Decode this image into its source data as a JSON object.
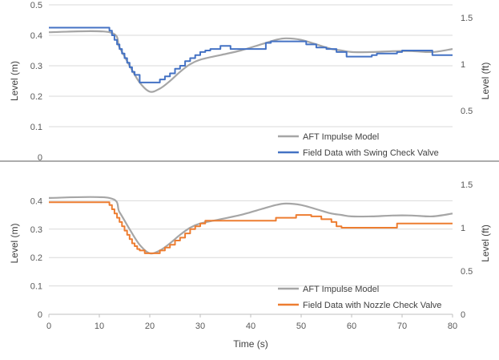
{
  "chart_data": {
    "type": "line",
    "x_axis": {
      "label": "Time (s)",
      "range": [
        0,
        80
      ],
      "ticks": [
        "0",
        "10",
        "20",
        "30",
        "40",
        "50",
        "60",
        "70",
        "80"
      ]
    },
    "charts": [
      {
        "type": "line",
        "ylabel_left": "Level (m)",
        "ylabel_right": "Level (ft)",
        "ylim": [
          0,
          0.5
        ],
        "yticks": [
          "0",
          "0.1",
          "0.2",
          "0.3",
          "0.4",
          "0.5"
        ],
        "ylim_right": [
          0,
          1.64
        ],
        "yticks_right": [
          "0.5",
          "1",
          "1.5"
        ],
        "legend_position": "bottom-right",
        "series": [
          {
            "name": "AFT Impulse Model",
            "color": "#a6a6a6",
            "style": "smooth",
            "x": [
              0,
              12,
              14,
              16,
              18,
              20,
              22,
              24,
              26,
              28,
              30,
              34,
              38,
              42,
              45,
              47,
              50,
              54,
              56,
              58,
              60,
              64,
              68,
              72,
              76,
              80
            ],
            "y": [
              0.41,
              0.41,
              0.36,
              0.3,
              0.245,
              0.215,
              0.225,
              0.25,
              0.28,
              0.305,
              0.32,
              0.335,
              0.35,
              0.37,
              0.385,
              0.39,
              0.385,
              0.365,
              0.355,
              0.35,
              0.345,
              0.345,
              0.348,
              0.348,
              0.345,
              0.355
            ]
          },
          {
            "name": "Field Data with Swing Check Valve",
            "color": "#4472c4",
            "style": "step",
            "x": [
              0,
              12,
              12.5,
              13,
              13.5,
              14,
              14.5,
              15,
              15.5,
              16,
              16.5,
              17,
              18,
              22,
              23,
              24,
              25,
              26,
              27,
              28,
              29,
              30,
              31,
              32,
              34,
              36,
              43,
              44,
              51,
              53,
              55,
              57,
              59,
              64,
              65,
              69,
              70,
              76,
              77,
              80
            ],
            "y": [
              0.425,
              0.415,
              0.4,
              0.385,
              0.37,
              0.355,
              0.34,
              0.325,
              0.31,
              0.295,
              0.28,
              0.27,
              0.245,
              0.255,
              0.265,
              0.275,
              0.29,
              0.3,
              0.315,
              0.325,
              0.335,
              0.345,
              0.35,
              0.355,
              0.365,
              0.355,
              0.375,
              0.38,
              0.37,
              0.36,
              0.355,
              0.345,
              0.33,
              0.335,
              0.34,
              0.345,
              0.35,
              0.335,
              0.335,
              0.335
            ]
          }
        ]
      },
      {
        "type": "line",
        "ylabel_left": "Level (m)",
        "ylabel_right": "Level (ft)",
        "ylim": [
          0,
          0.5
        ],
        "yticks": [
          "0",
          "0.1",
          "0.2",
          "0.3",
          "0.4"
        ],
        "ylim_right": [
          0,
          1.64
        ],
        "yticks_right": [
          "0",
          "0.5",
          "1",
          "1.5"
        ],
        "legend_position": "bottom-right",
        "series": [
          {
            "name": "AFT Impulse Model",
            "color": "#a6a6a6",
            "style": "smooth",
            "x": [
              0,
              12,
              14,
              16,
              18,
              20,
              22,
              24,
              26,
              28,
              30,
              34,
              38,
              42,
              45,
              47,
              50,
              54,
              56,
              58,
              60,
              64,
              68,
              72,
              76,
              80
            ],
            "y": [
              0.41,
              0.41,
              0.36,
              0.3,
              0.245,
              0.215,
              0.225,
              0.25,
              0.28,
              0.305,
              0.32,
              0.335,
              0.35,
              0.37,
              0.385,
              0.39,
              0.385,
              0.365,
              0.355,
              0.35,
              0.345,
              0.345,
              0.348,
              0.348,
              0.345,
              0.355
            ]
          },
          {
            "name": "Field Data with Nozzle Check Valve",
            "color": "#ed7d31",
            "style": "step",
            "x": [
              0,
              12,
              12.5,
              13,
              13.5,
              14,
              14.5,
              15,
              15.5,
              16,
              16.5,
              17,
              17.5,
              18,
              19,
              22,
              23,
              24,
              25,
              26,
              27,
              28,
              29,
              30,
              31,
              45,
              49,
              52,
              54,
              56,
              57,
              58,
              69,
              80
            ],
            "y": [
              0.395,
              0.385,
              0.37,
              0.355,
              0.34,
              0.325,
              0.31,
              0.295,
              0.28,
              0.265,
              0.25,
              0.24,
              0.23,
              0.225,
              0.215,
              0.225,
              0.235,
              0.245,
              0.26,
              0.27,
              0.285,
              0.3,
              0.31,
              0.32,
              0.33,
              0.34,
              0.35,
              0.345,
              0.335,
              0.325,
              0.31,
              0.305,
              0.32,
              0.32
            ]
          }
        ]
      }
    ]
  }
}
